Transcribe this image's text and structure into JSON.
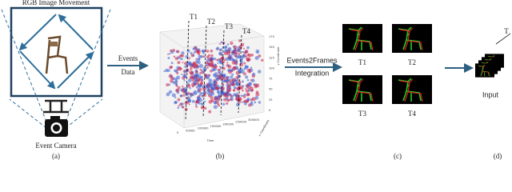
{
  "panel_a": {
    "title": "RGB Image Movement",
    "camera_label": "Event Camera",
    "caption": "(a)"
  },
  "arrow_1": {
    "label_top": "Events",
    "label_bottom": "Data"
  },
  "panel_b": {
    "time_markers": [
      "T1",
      "T2",
      "T3",
      "T4"
    ],
    "axes": {
      "x_label": "Time",
      "y_label": "x Coordinate",
      "z_label": "y Coordinate",
      "x_ticks": [
        "0",
        "50000",
        "100000",
        "150000",
        "200000",
        "250000",
        "300000"
      ],
      "z_ticks": [
        "0",
        "25",
        "50",
        "75",
        "100",
        "125",
        "150",
        "175"
      ]
    },
    "caption": "(b)"
  },
  "arrow_2": {
    "label_top": "Events2Frames",
    "label_bottom": "Integration"
  },
  "panel_c": {
    "frames": [
      "T1",
      "T2",
      "T3",
      "T4"
    ],
    "caption": "(c)"
  },
  "panel_d": {
    "stack_label": "Input",
    "axis_label": "T",
    "caption": "(d)"
  }
}
